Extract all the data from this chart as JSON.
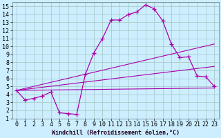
{
  "xlabel": "Windchill (Refroidissement éolien,°C)",
  "background_color": "#cceeff",
  "grid_color": "#aacccc",
  "line_color": "#aa00aa",
  "xlim": [
    -0.5,
    23.5
  ],
  "ylim": [
    1,
    15.5
  ],
  "xticks": [
    0,
    1,
    2,
    3,
    4,
    5,
    6,
    7,
    8,
    9,
    10,
    11,
    12,
    13,
    14,
    15,
    16,
    17,
    18,
    19,
    20,
    21,
    22,
    23
  ],
  "yticks": [
    1,
    2,
    3,
    4,
    5,
    6,
    7,
    8,
    9,
    10,
    11,
    12,
    13,
    14,
    15
  ],
  "curve1_x": [
    0,
    1,
    2,
    3,
    4,
    5,
    6,
    7,
    8,
    9,
    10,
    11,
    12,
    13,
    14,
    15,
    16,
    17,
    18,
    19,
    20,
    21,
    22,
    23
  ],
  "curve1_y": [
    4.5,
    3.3,
    3.5,
    3.8,
    4.3,
    1.7,
    1.6,
    1.5,
    6.5,
    9.2,
    11.0,
    13.3,
    13.3,
    14.0,
    14.3,
    15.2,
    14.7,
    13.2,
    10.3,
    8.6,
    8.7,
    6.3,
    6.2,
    5.0
  ],
  "curve2_x": [
    0,
    23
  ],
  "curve2_y": [
    4.5,
    10.3
  ],
  "curve3_x": [
    0,
    23
  ],
  "curve3_y": [
    4.5,
    7.5
  ],
  "curve4_x": [
    0,
    23
  ],
  "curve4_y": [
    4.5,
    4.8
  ],
  "tick_fontsize": 6,
  "xlabel_fontsize": 6
}
